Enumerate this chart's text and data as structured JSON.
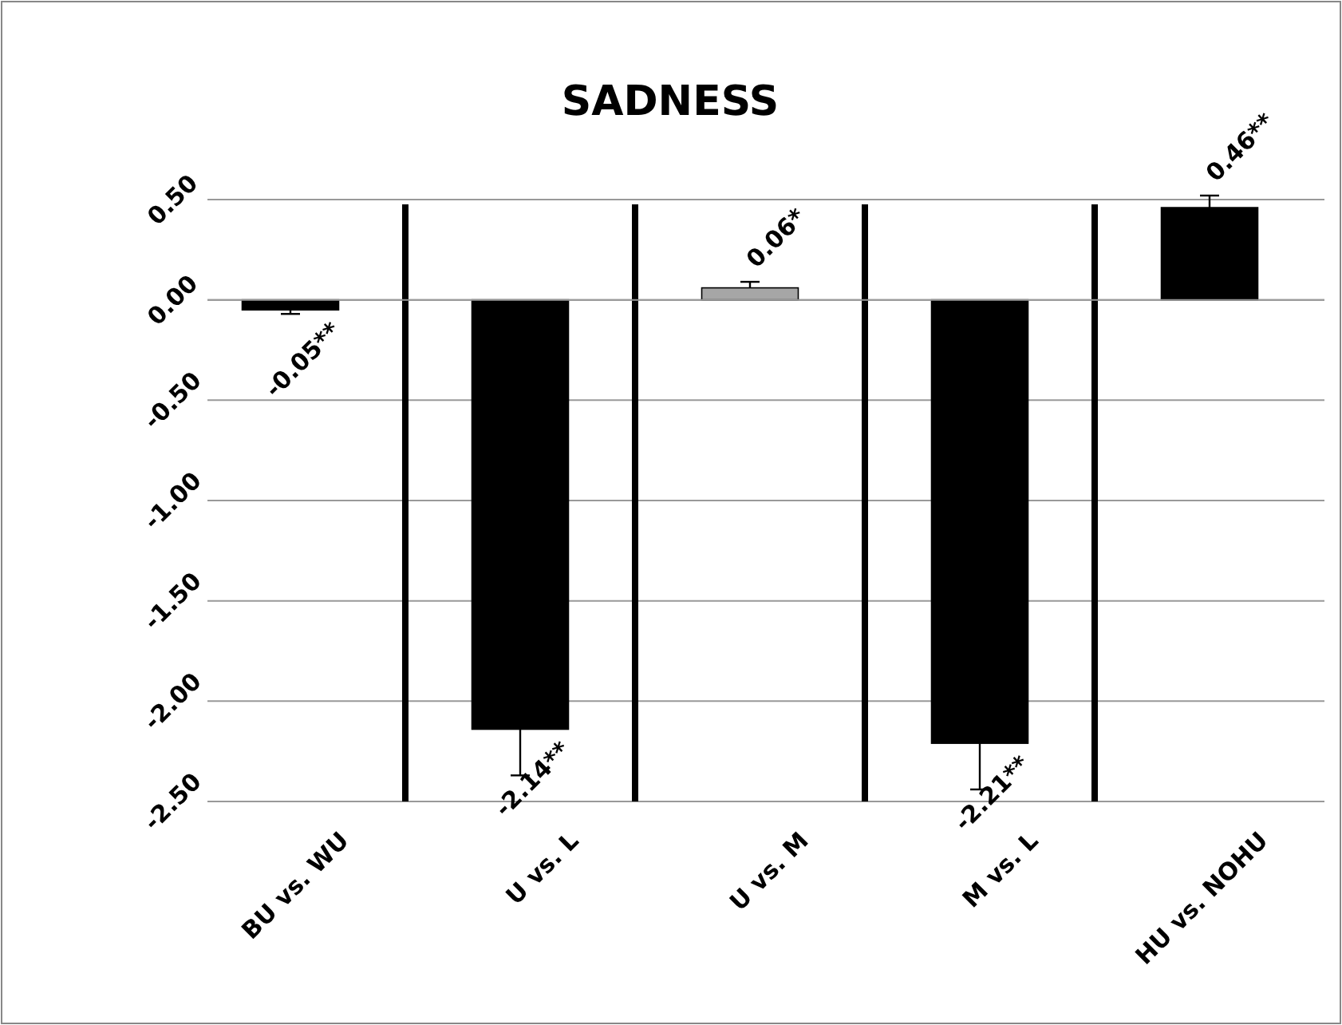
{
  "chart_data": {
    "type": "bar",
    "title": "SADNESS",
    "categories": [
      "BU vs. WU",
      "U vs. L",
      "U vs. M",
      "M vs. L",
      "HU vs. NOHU"
    ],
    "values": [
      -0.05,
      -2.14,
      0.06,
      -2.21,
      0.46
    ],
    "colors": [
      "#000000",
      "#000000",
      "#a6a6a6",
      "#000000",
      "#000000"
    ],
    "errors": [
      [
        -0.07,
        -0.05
      ],
      [
        -2.37,
        -2.14
      ],
      [
        0.06,
        0.09
      ],
      [
        -2.44,
        -2.21
      ],
      [
        0.46,
        0.52
      ]
    ],
    "value_labels": [
      "-0.05**",
      "-2.14**",
      "0.06*",
      "-2.21**",
      "0.46**"
    ],
    "ylim": [
      -2.5,
      0.5
    ],
    "yticks": [
      {
        "value": -2.5,
        "label": "-2.50"
      },
      {
        "value": -2,
        "label": "-2.00"
      },
      {
        "value": -1.5,
        "label": "-1.50"
      },
      {
        "value": -1,
        "label": "-1.00"
      },
      {
        "value": -0.5,
        "label": "-0.50"
      },
      {
        "value": 0,
        "label": "0.00"
      },
      {
        "value": 0.5,
        "label": "0.50"
      }
    ],
    "grid": "y"
  }
}
